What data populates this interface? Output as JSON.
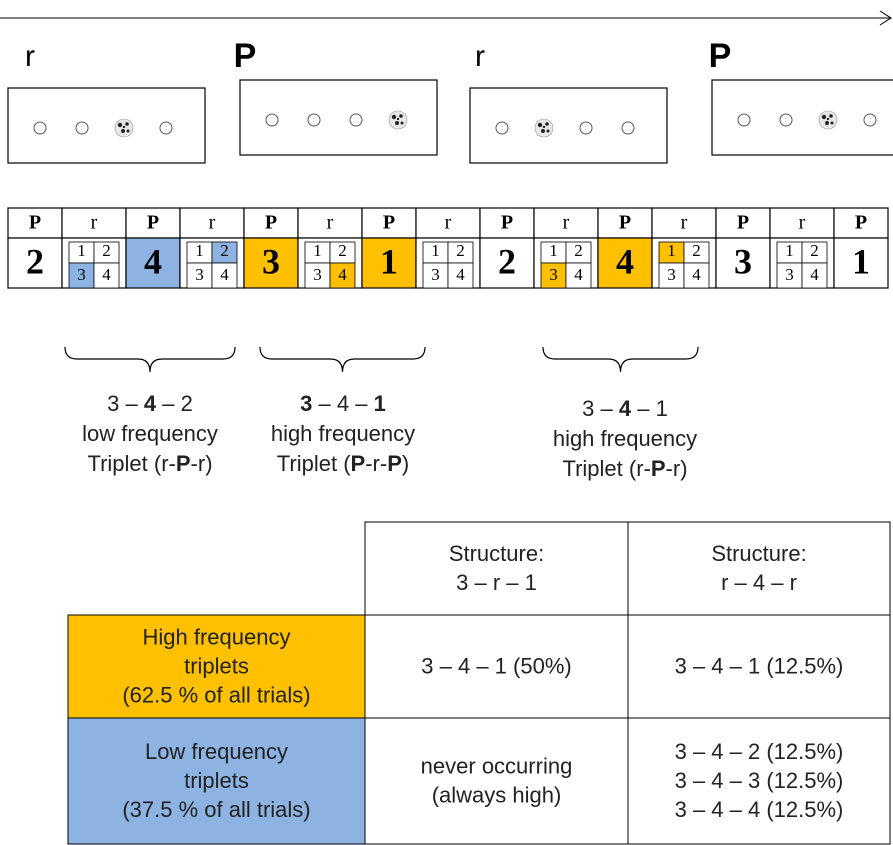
{
  "timeline": {
    "stimuli": [
      {
        "label": "r",
        "target": 2
      },
      {
        "label": "P",
        "target": 3
      },
      {
        "label": "r",
        "target": 1
      },
      {
        "label": "P",
        "target": 2
      }
    ]
  },
  "sequence": {
    "cells": [
      {
        "type": "P",
        "number": "2"
      },
      {
        "type": "r",
        "digits": [
          "1",
          "2",
          "3",
          "4"
        ],
        "highlight": 2,
        "color": "#8db3e2"
      },
      {
        "type": "P",
        "number": "4",
        "color": "#8db3e2"
      },
      {
        "type": "r",
        "digits": [
          "1",
          "2",
          "3",
          "4"
        ],
        "highlight": 1,
        "color": "#8db3e2"
      },
      {
        "type": "P",
        "number": "3",
        "color": "#ffc000"
      },
      {
        "type": "r",
        "digits": [
          "1",
          "2",
          "3",
          "4"
        ],
        "highlight": 3,
        "color": "#ffc000"
      },
      {
        "type": "P",
        "number": "1",
        "color": "#ffc000"
      },
      {
        "type": "r",
        "digits": [
          "1",
          "2",
          "3",
          "4"
        ]
      },
      {
        "type": "P",
        "number": "2"
      },
      {
        "type": "r",
        "digits": [
          "1",
          "2",
          "3",
          "4"
        ],
        "highlight": 2,
        "color": "#ffc000"
      },
      {
        "type": "P",
        "number": "4",
        "color": "#ffc000"
      },
      {
        "type": "r",
        "digits": [
          "1",
          "2",
          "3",
          "4"
        ],
        "highlight": 0,
        "color": "#ffc000"
      },
      {
        "type": "P",
        "number": "3"
      },
      {
        "type": "r",
        "digits": [
          "1",
          "2",
          "3",
          "4"
        ]
      },
      {
        "type": "P",
        "number": "1"
      }
    ]
  },
  "annotations": [
    {
      "lines": [
        [
          {
            "text": "3 – "
          },
          {
            "text": "4",
            "bold": true
          },
          {
            "text": " – 2"
          }
        ],
        [
          {
            "text": "low frequency"
          }
        ],
        [
          {
            "text": "Triplet (r-"
          },
          {
            "text": "P",
            "bold": true
          },
          {
            "text": "-r)"
          }
        ]
      ]
    },
    {
      "lines": [
        [
          {
            "text": "3",
            "bold": true
          },
          {
            "text": " – 4 – "
          },
          {
            "text": "1",
            "bold": true
          }
        ],
        [
          {
            "text": "high frequency"
          }
        ],
        [
          {
            "text": "Triplet ("
          },
          {
            "text": "P",
            "bold": true
          },
          {
            "text": "-r-"
          },
          {
            "text": "P",
            "bold": true
          },
          {
            "text": ")"
          }
        ]
      ]
    },
    {
      "lines": [
        [
          {
            "text": "3 – "
          },
          {
            "text": "4",
            "bold": true
          },
          {
            "text": " – 1"
          }
        ],
        [
          {
            "text": "high frequency"
          }
        ],
        [
          {
            "text": "Triplet (r-"
          },
          {
            "text": "P",
            "bold": true
          },
          {
            "text": "-r)"
          }
        ]
      ]
    }
  ],
  "table": {
    "columns": [
      [
        "Structure:",
        "3 – r – 1"
      ],
      [
        "Structure:",
        "r – 4 – r"
      ]
    ],
    "rows": [
      {
        "label": [
          "High frequency",
          "triplets",
          "(62.5 % of all trials)"
        ],
        "color": "#ffc000",
        "cells": [
          [
            "3 – 4 – 1 (50%)"
          ],
          [
            "3 – 4 – 1 (12.5%)"
          ]
        ]
      },
      {
        "label": [
          "Low frequency",
          "triplets",
          "(37.5 % of all trials)"
        ],
        "color": "#8db3e2",
        "cells": [
          [
            "never occurring",
            "(always high)"
          ],
          [
            "3 – 4 – 2 (12.5%)",
            "3 – 4 – 3 (12.5%)",
            "3 – 4 – 4 (12.5%)"
          ]
        ]
      }
    ]
  }
}
